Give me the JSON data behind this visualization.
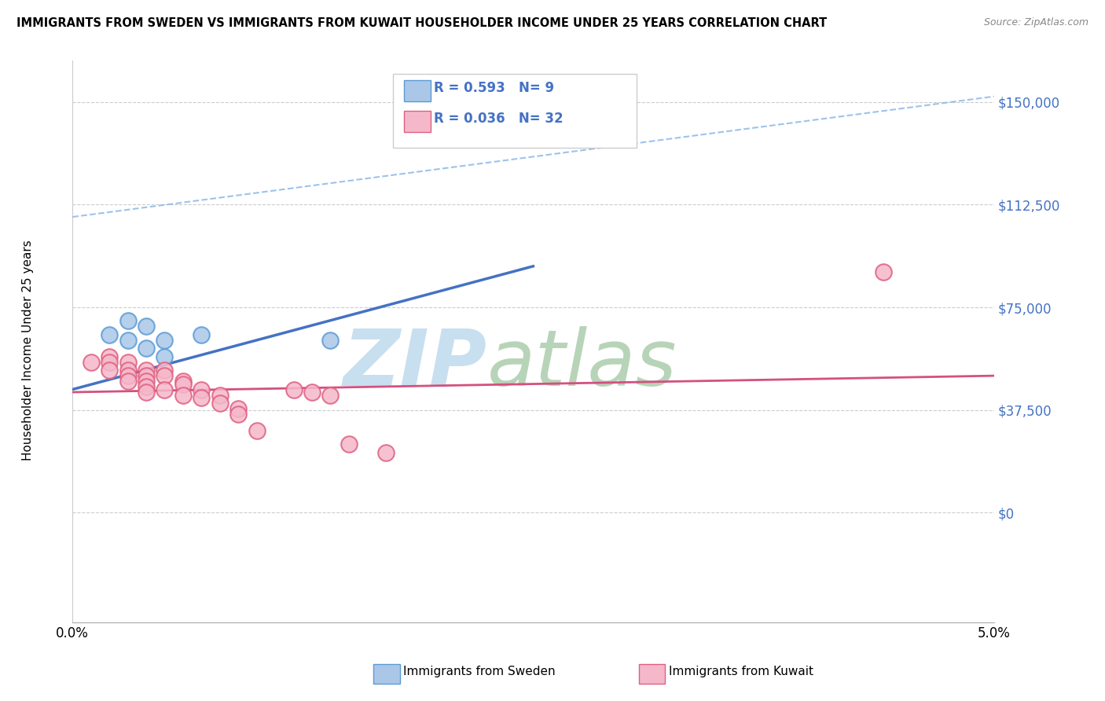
{
  "title": "IMMIGRANTS FROM SWEDEN VS IMMIGRANTS FROM KUWAIT HOUSEHOLDER INCOME UNDER 25 YEARS CORRELATION CHART",
  "source": "Source: ZipAtlas.com",
  "ylabel": "Householder Income Under 25 years",
  "xlim": [
    0.0,
    0.05
  ],
  "ylim": [
    -40000,
    165000
  ],
  "yticks": [
    0,
    37500,
    75000,
    112500,
    150000
  ],
  "ytick_labels": [
    "$0",
    "$37,500",
    "$75,000",
    "$112,500",
    "$150,000"
  ],
  "xticks": [
    0.0,
    0.01,
    0.02,
    0.03,
    0.04,
    0.05
  ],
  "xtick_labels": [
    "0.0%",
    "",
    "",
    "",
    "",
    "5.0%"
  ],
  "sweden_color": "#aac7e8",
  "kuwait_color": "#f5b8cb",
  "sweden_edge": "#5b9bd5",
  "kuwait_edge": "#e06080",
  "trend_blue": "#4472c4",
  "trend_pink": "#d45080",
  "trend_dashed": "#85b4e8",
  "R_sweden": 0.593,
  "N_sweden": 9,
  "R_kuwait": 0.036,
  "N_kuwait": 32,
  "sweden_x": [
    0.002,
    0.003,
    0.003,
    0.004,
    0.004,
    0.005,
    0.005,
    0.007,
    0.014
  ],
  "sweden_y": [
    65000,
    70000,
    63000,
    68000,
    60000,
    63000,
    57000,
    65000,
    63000
  ],
  "kuwait_x": [
    0.001,
    0.002,
    0.002,
    0.002,
    0.003,
    0.003,
    0.003,
    0.003,
    0.004,
    0.004,
    0.004,
    0.004,
    0.004,
    0.005,
    0.005,
    0.005,
    0.006,
    0.006,
    0.006,
    0.007,
    0.007,
    0.008,
    0.008,
    0.009,
    0.009,
    0.01,
    0.012,
    0.013,
    0.014,
    0.015,
    0.017,
    0.044
  ],
  "kuwait_y": [
    55000,
    57000,
    55000,
    52000,
    55000,
    52000,
    50000,
    48000,
    52000,
    50000,
    48000,
    46000,
    44000,
    52000,
    50000,
    45000,
    48000,
    47000,
    43000,
    45000,
    42000,
    43000,
    40000,
    38000,
    36000,
    30000,
    45000,
    44000,
    43000,
    25000,
    22000,
    88000
  ],
  "blue_trend_x0": 0.0,
  "blue_trend_y0": 45000,
  "blue_trend_x1": 0.025,
  "blue_trend_y1": 90000,
  "pink_trend_x0": 0.0,
  "pink_trend_y0": 44000,
  "pink_trend_x1": 0.05,
  "pink_trend_y1": 50000,
  "dash_trend_x0": 0.0,
  "dash_trend_y0": 108000,
  "dash_trend_x1": 0.05,
  "dash_trend_y1": 152000
}
